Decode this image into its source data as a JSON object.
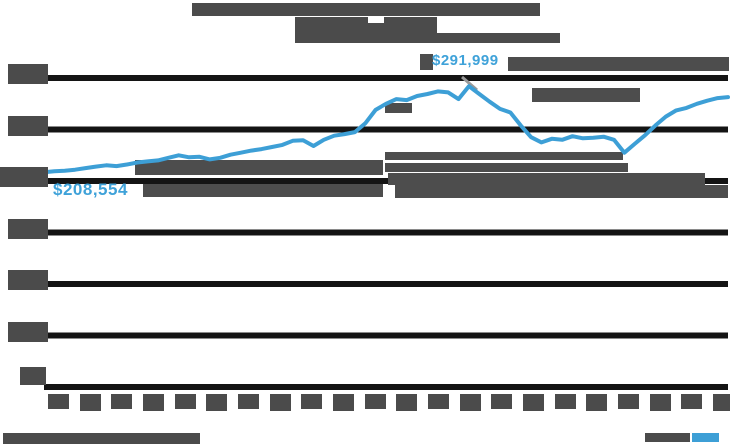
{
  "title": {
    "legible": false,
    "line_count": 2
  },
  "annotations": {
    "start_label": "$208,554",
    "peak_label": "$291,999",
    "start_value": 208554,
    "peak_value": 291999
  },
  "colors": {
    "line": "#3d9fd6",
    "annotation_text": "#3fa2d9",
    "redacted_text": "#4b4b4b",
    "artifact_gray": "#4d4d4d",
    "gridline": "#141414",
    "background": "#ffffff",
    "logo_accent": "#3d9fd6",
    "leader_gray": "#999999"
  },
  "chart_data": {
    "type": "line",
    "title": "",
    "title_legible": false,
    "xlabel": "",
    "ylabel": "",
    "ylim": [
      0,
      300000
    ],
    "y_tick_step": 50000,
    "y_gridline_count": 7,
    "y_tick_labels_legible": false,
    "x_tick_count": 22,
    "x_tick_labels_legible": false,
    "grid": "horizontal",
    "legend": "none",
    "annotations": [
      {
        "text": "$208,554",
        "anchor": "first-point"
      },
      {
        "text": "$291,999",
        "anchor": "max-point"
      }
    ],
    "values": [
      208554,
      209500,
      210000,
      211000,
      212500,
      214000,
      215200,
      214500,
      216000,
      218000,
      219000,
      220000,
      222500,
      225000,
      223000,
      223500,
      221000,
      222500,
      225500,
      227500,
      229500,
      231000,
      233000,
      235000,
      239000,
      239500,
      234000,
      240000,
      244000,
      245500,
      247500,
      256000,
      269000,
      275000,
      279500,
      278500,
      282500,
      284500,
      287000,
      286000,
      279500,
      291999,
      284500,
      277000,
      270000,
      266500,
      254000,
      242500,
      237500,
      241000,
      240000,
      243500,
      241500,
      242000,
      243000,
      240000,
      227500,
      236000,
      244500,
      254000,
      262500,
      268500,
      271000,
      275000,
      278000,
      280500,
      281500
    ]
  },
  "footer": {
    "source_legible": false,
    "logo_legible": false
  }
}
